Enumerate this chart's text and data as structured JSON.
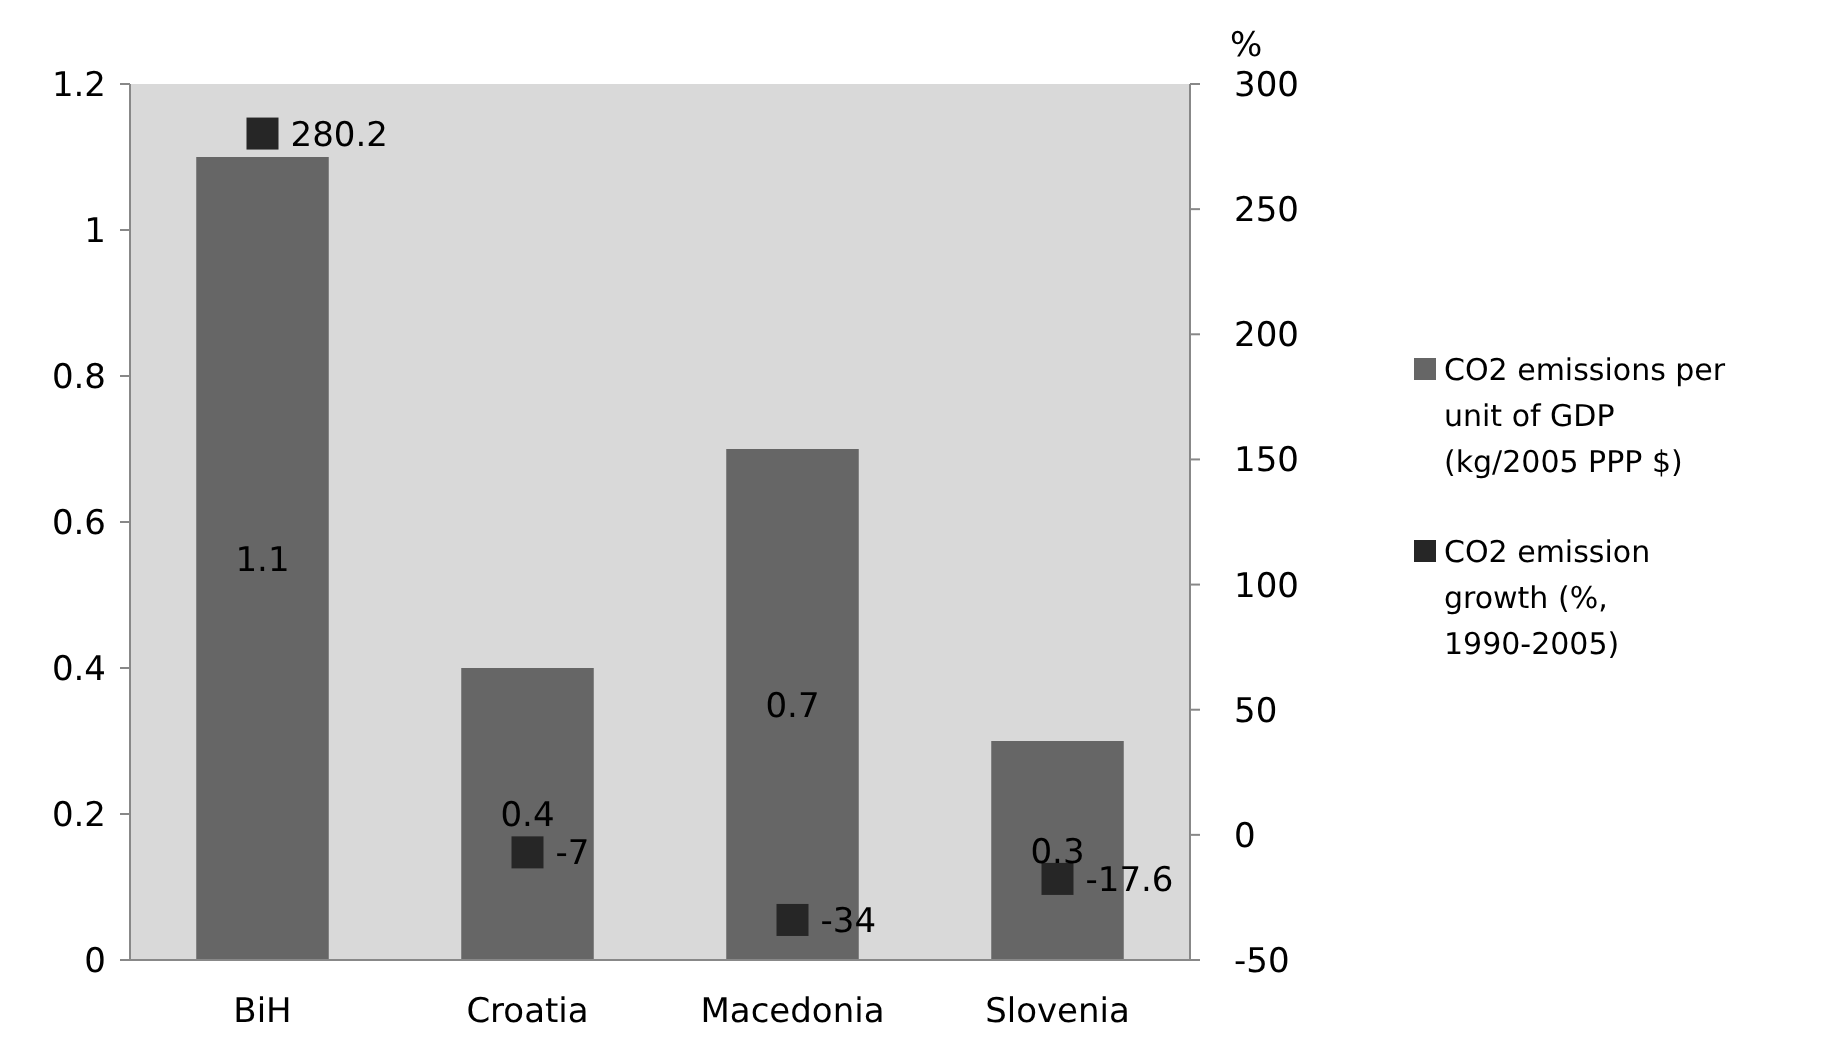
{
  "chart_data": {
    "type": "bar",
    "categories": [
      "BiH",
      "Croatia",
      "Macedonia",
      "Slovenia"
    ],
    "series": [
      {
        "name": "CO2 emissions per unit of GDP (kg/2005 PPP $)",
        "color": "#666666",
        "values": [
          1.1,
          0.4,
          0.7,
          0.3
        ]
      },
      {
        "name": "CO2 emission growth (%, 1990-2005)",
        "type": "scatter",
        "axis": "y2",
        "color": "#262626",
        "values": [
          280.2,
          -7,
          -34,
          -17.6
        ]
      }
    ],
    "ylim": [
      0,
      1.2
    ],
    "yticks": [
      0,
      0.2,
      0.4,
      0.6,
      0.8,
      1,
      1.2
    ],
    "y2lim": [
      -50,
      300
    ],
    "y2ticks": [
      -50,
      0,
      50,
      100,
      150,
      200,
      250,
      300
    ],
    "y2label": "%",
    "marker": "square",
    "data_labels": true,
    "legend": "right",
    "grid": false
  }
}
